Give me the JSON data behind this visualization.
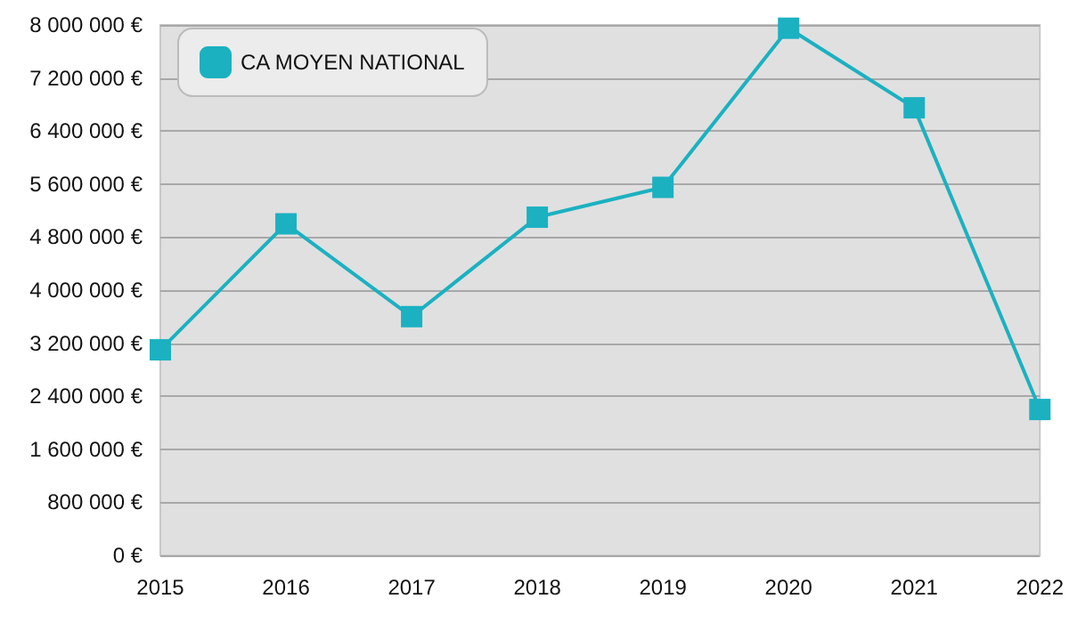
{
  "chart_data": {
    "type": "line",
    "categories": [
      "2015",
      "2016",
      "2017",
      "2018",
      "2019",
      "2020",
      "2021",
      "2022"
    ],
    "series": [
      {
        "name": "CA MOYEN NATIONAL",
        "color": "#1bb1c1",
        "values": [
          3100000,
          5000000,
          3600000,
          5100000,
          5550000,
          7950000,
          6750000,
          2200000
        ]
      }
    ],
    "ylim": [
      0,
      8000000
    ],
    "yticks": [
      {
        "value": 0,
        "label": "0 €"
      },
      {
        "value": 800000,
        "label": "800 000 €"
      },
      {
        "value": 1600000,
        "label": "1 600 000 €"
      },
      {
        "value": 2400000,
        "label": "2 400 000 €"
      },
      {
        "value": 3200000,
        "label": "3 200 000 €"
      },
      {
        "value": 4000000,
        "label": "4 000 000 €"
      },
      {
        "value": 4800000,
        "label": "4 800 000 €"
      },
      {
        "value": 5600000,
        "label": "5 600 000 €"
      },
      {
        "value": 6400000,
        "label": "6 400 000 €"
      },
      {
        "value": 7200000,
        "label": "7 200 000 €"
      },
      {
        "value": 8000000,
        "label": "8 000 000 €"
      }
    ],
    "grid": "y",
    "legend": "top left",
    "marker": "square",
    "line_style": "solid"
  }
}
